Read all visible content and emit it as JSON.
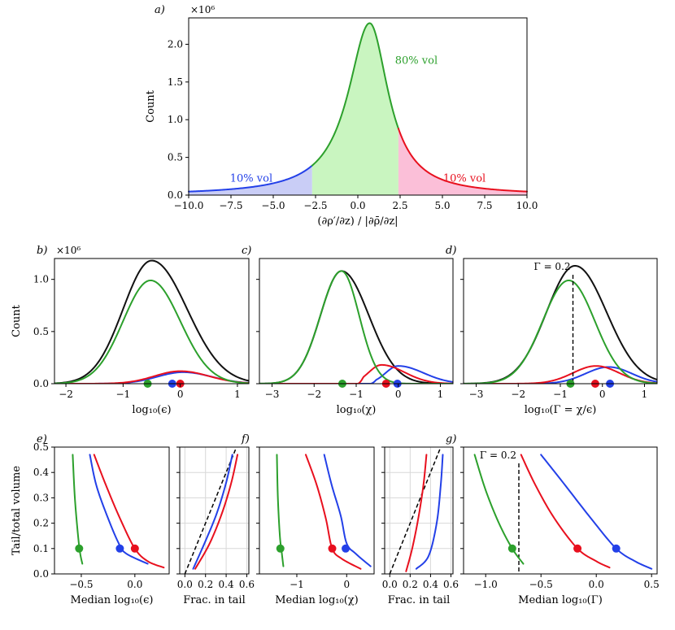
{
  "colors": {
    "green": "#2ca02c",
    "blue": "#2340e8",
    "red": "#e8101e",
    "black": "#111111",
    "fill_green": "#c9f5c0",
    "fill_blue": "#c9cdf6",
    "fill_red": "#fbbfd8",
    "grid": "#d8d8d8"
  },
  "chart_data": [
    {
      "id": "a",
      "panel_label": "a)",
      "type": "area",
      "multiplier": "×10⁶",
      "xlabel": "(∂ρ′/∂z) / |∂ρ̄/∂z|",
      "ylabel": "Count",
      "xlim": [
        -10,
        10
      ],
      "ylim": [
        0,
        2.35
      ],
      "xticks": [
        "−10.0",
        "−7.5",
        "−5.0",
        "−2.5",
        "0.0",
        "2.5",
        "5.0",
        "7.5",
        "10.0"
      ],
      "yticks": [
        "0.0",
        "0.5",
        "1.0",
        "1.5",
        "2.0"
      ],
      "peak_x": 0.7,
      "peak_count": 2.28,
      "split_low": -2.7,
      "split_high": 2.4,
      "region_labels": {
        "low": "10% vol",
        "mid": "80% vol",
        "high": "10% vol"
      }
    },
    {
      "id": "b",
      "panel_label": "b)",
      "type": "line",
      "multiplier": "×10⁶",
      "xlabel": "log₁₀(ϵ)",
      "ylabel": "Count",
      "xlim": [
        -2.2,
        1.2
      ],
      "ylim": [
        0,
        1.2
      ],
      "xticks": [
        "−2",
        "−1",
        "0",
        "1"
      ],
      "yticks": [
        "0.0",
        "0.5",
        "1.0"
      ],
      "series": [
        {
          "name": "total",
          "color": "black",
          "center": -0.5,
          "amplitude": 1.18,
          "sigma_left": 0.5,
          "sigma_right": 0.62
        },
        {
          "name": "core",
          "color": "green",
          "center": -0.52,
          "amplitude": 0.99,
          "sigma_left": 0.48,
          "sigma_right": 0.52
        },
        {
          "name": "low tail",
          "color": "blue",
          "center": 0.05,
          "amplitude": 0.11,
          "sigma_left": 0.45,
          "sigma_right": 0.5
        },
        {
          "name": "high tail",
          "color": "red",
          "center": 0.0,
          "amplitude": 0.12,
          "sigma_left": 0.45,
          "sigma_right": 0.5
        }
      ],
      "medians": [
        {
          "color": "green",
          "x": -0.57
        },
        {
          "color": "blue",
          "x": -0.14
        },
        {
          "color": "red",
          "x": 0.0
        }
      ]
    },
    {
      "id": "c",
      "panel_label": "c)",
      "type": "line",
      "xlabel": "log₁₀(χ)",
      "xlim": [
        -3.3,
        1.3
      ],
      "ylim": [
        0,
        1.2
      ],
      "xticks": [
        "−3",
        "−2",
        "−1",
        "0",
        "1"
      ],
      "series": [
        {
          "name": "total",
          "color": "black",
          "center": -1.35,
          "amplitude": 1.08,
          "sigma_left": 0.5,
          "sigma_right": 0.65
        },
        {
          "name": "core",
          "color": "green",
          "center": -1.35,
          "amplitude": 1.08,
          "sigma_left": 0.5,
          "sigma_right": 0.42
        },
        {
          "name": "low tail",
          "color": "blue",
          "center": 0.0,
          "amplitude": 0.17,
          "sigma_left": 0.3,
          "sigma_right": 0.6,
          "start": -0.65
        },
        {
          "name": "high tail",
          "color": "red",
          "center": -0.4,
          "amplitude": 0.18,
          "sigma_left": 0.3,
          "sigma_right": 0.55,
          "start": -0.95
        }
      ],
      "medians": [
        {
          "color": "green",
          "x": -1.33
        },
        {
          "color": "red",
          "x": -0.29
        },
        {
          "color": "blue",
          "x": -0.02
        }
      ]
    },
    {
      "id": "d",
      "panel_label": "d)",
      "type": "line",
      "xlabel": "log₁₀(Γ = χ/ϵ)",
      "xlim": [
        -3.3,
        1.3
      ],
      "ylim": [
        0,
        1.2
      ],
      "xticks": [
        "−3",
        "−2",
        "−1",
        "0",
        "1"
      ],
      "vline": {
        "x": -0.7,
        "label": "Γ = 0.2"
      },
      "series": [
        {
          "name": "total",
          "color": "black",
          "center": -0.65,
          "amplitude": 1.13,
          "sigma_left": 0.68,
          "sigma_right": 0.75
        },
        {
          "name": "core",
          "color": "green",
          "center": -0.8,
          "amplitude": 0.99,
          "sigma_left": 0.62,
          "sigma_right": 0.62
        },
        {
          "name": "low tail",
          "color": "blue",
          "center": 0.15,
          "amplitude": 0.16,
          "sigma_left": 0.55,
          "sigma_right": 0.55
        },
        {
          "name": "high tail",
          "color": "red",
          "center": -0.15,
          "amplitude": 0.17,
          "sigma_left": 0.55,
          "sigma_right": 0.55
        }
      ],
      "medians": [
        {
          "color": "green",
          "x": -0.76
        },
        {
          "color": "red",
          "x": -0.17
        },
        {
          "color": "blue",
          "x": 0.18
        }
      ]
    },
    {
      "id": "e",
      "panel_label": "e)",
      "type": "line",
      "xlabel": "Median log₁₀(ϵ)",
      "ylabel": "Tail/total volume",
      "xlim": [
        -0.75,
        0.32
      ],
      "ylim": [
        0,
        0.5
      ],
      "xticks": [
        "−0.5",
        "0.0"
      ],
      "yticks": [
        "0.0",
        "0.1",
        "0.2",
        "0.3",
        "0.4",
        "0.5"
      ],
      "series": [
        {
          "color": "green",
          "x": [
            -0.58,
            -0.56,
            -0.53,
            -0.51,
            -0.49
          ],
          "y": [
            0.47,
            0.3,
            0.15,
            0.08,
            0.04
          ]
        },
        {
          "color": "blue",
          "x": [
            -0.42,
            -0.36,
            -0.26,
            -0.15,
            -0.08,
            0.12
          ],
          "y": [
            0.47,
            0.35,
            0.23,
            0.12,
            0.08,
            0.04
          ]
        },
        {
          "color": "red",
          "x": [
            -0.38,
            -0.27,
            -0.14,
            0.0,
            0.12,
            0.27
          ],
          "y": [
            0.47,
            0.35,
            0.22,
            0.1,
            0.05,
            0.025
          ]
        }
      ],
      "points": [
        {
          "color": "green",
          "x": -0.52,
          "y": 0.1
        },
        {
          "color": "blue",
          "x": -0.14,
          "y": 0.1
        },
        {
          "color": "red",
          "x": 0.0,
          "y": 0.1
        }
      ]
    },
    {
      "id": "e2",
      "type": "line",
      "xlabel": "Frac. in tail",
      "grid": true,
      "xlim": [
        -0.05,
        0.62
      ],
      "ylim": [
        0,
        0.5
      ],
      "xticks": [
        "0.0",
        "0.2",
        "0.4",
        "0.6"
      ],
      "reference_line": {
        "x": [
          0,
          0.5
        ],
        "y": [
          0,
          0.5
        ]
      },
      "series": [
        {
          "color": "blue",
          "x": [
            0.08,
            0.2,
            0.31,
            0.4,
            0.46
          ],
          "y": [
            0.02,
            0.13,
            0.24,
            0.36,
            0.47
          ]
        },
        {
          "color": "red",
          "x": [
            0.1,
            0.24,
            0.36,
            0.45,
            0.51
          ],
          "y": [
            0.02,
            0.12,
            0.24,
            0.36,
            0.47
          ]
        }
      ]
    },
    {
      "id": "f",
      "panel_label": "f)",
      "type": "line",
      "xlabel": "Median log₁₀(χ)",
      "xlim": [
        -1.75,
        0.55
      ],
      "ylim": [
        0,
        0.5
      ],
      "xticks": [
        "−1",
        "0"
      ],
      "series": [
        {
          "color": "green",
          "x": [
            -1.4,
            -1.38,
            -1.34,
            -1.3,
            -1.27
          ],
          "y": [
            0.47,
            0.3,
            0.15,
            0.08,
            0.03
          ]
        },
        {
          "color": "blue",
          "x": [
            -0.45,
            -0.3,
            -0.12,
            0.0,
            0.18,
            0.48
          ],
          "y": [
            0.47,
            0.35,
            0.23,
            0.12,
            0.08,
            0.03
          ]
        },
        {
          "color": "red",
          "x": [
            -0.82,
            -0.6,
            -0.42,
            -0.29,
            -0.1,
            0.28
          ],
          "y": [
            0.47,
            0.35,
            0.22,
            0.1,
            0.06,
            0.02
          ]
        }
      ],
      "points": [
        {
          "color": "green",
          "x": -1.33,
          "y": 0.1
        },
        {
          "color": "red",
          "x": -0.29,
          "y": 0.1
        },
        {
          "color": "blue",
          "x": -0.02,
          "y": 0.1
        }
      ]
    },
    {
      "id": "f2",
      "type": "line",
      "xlabel": "Frac. in tail",
      "grid": true,
      "xlim": [
        -0.05,
        0.62
      ],
      "ylim": [
        0,
        0.5
      ],
      "xticks": [
        "0.0",
        "0.2",
        "0.4",
        "0.6"
      ],
      "reference_line": {
        "x": [
          0,
          0.5
        ],
        "y": [
          0,
          0.5
        ]
      },
      "series": [
        {
          "color": "red",
          "x": [
            0.16,
            0.22,
            0.28,
            0.33,
            0.36
          ],
          "y": [
            0.01,
            0.1,
            0.22,
            0.35,
            0.47
          ]
        },
        {
          "color": "blue",
          "x": [
            0.26,
            0.38,
            0.46,
            0.5,
            0.52
          ],
          "y": [
            0.02,
            0.07,
            0.2,
            0.35,
            0.47
          ]
        }
      ]
    },
    {
      "id": "g",
      "panel_label": "g)",
      "type": "line",
      "xlabel": "Median log₁₀(Γ)",
      "xlim": [
        -1.2,
        0.55
      ],
      "ylim": [
        0,
        0.5
      ],
      "xticks": [
        "−1.0",
        "−0.5",
        "0.0",
        "0.5"
      ],
      "vline": {
        "x": -0.7,
        "label": "Γ = 0.2"
      },
      "series": [
        {
          "color": "green",
          "x": [
            -1.1,
            -1.0,
            -0.88,
            -0.76,
            -0.66
          ],
          "y": [
            0.47,
            0.33,
            0.2,
            0.1,
            0.04
          ]
        },
        {
          "color": "blue",
          "x": [
            -0.5,
            -0.3,
            -0.05,
            0.18,
            0.35,
            0.5
          ],
          "y": [
            0.47,
            0.36,
            0.22,
            0.1,
            0.05,
            0.02
          ]
        },
        {
          "color": "red",
          "x": [
            -0.68,
            -0.55,
            -0.38,
            -0.17,
            0.0,
            0.12
          ],
          "y": [
            0.47,
            0.35,
            0.22,
            0.1,
            0.05,
            0.025
          ]
        }
      ],
      "points": [
        {
          "color": "green",
          "x": -0.76,
          "y": 0.1
        },
        {
          "color": "red",
          "x": -0.17,
          "y": 0.1
        },
        {
          "color": "blue",
          "x": 0.18,
          "y": 0.1
        }
      ]
    }
  ]
}
